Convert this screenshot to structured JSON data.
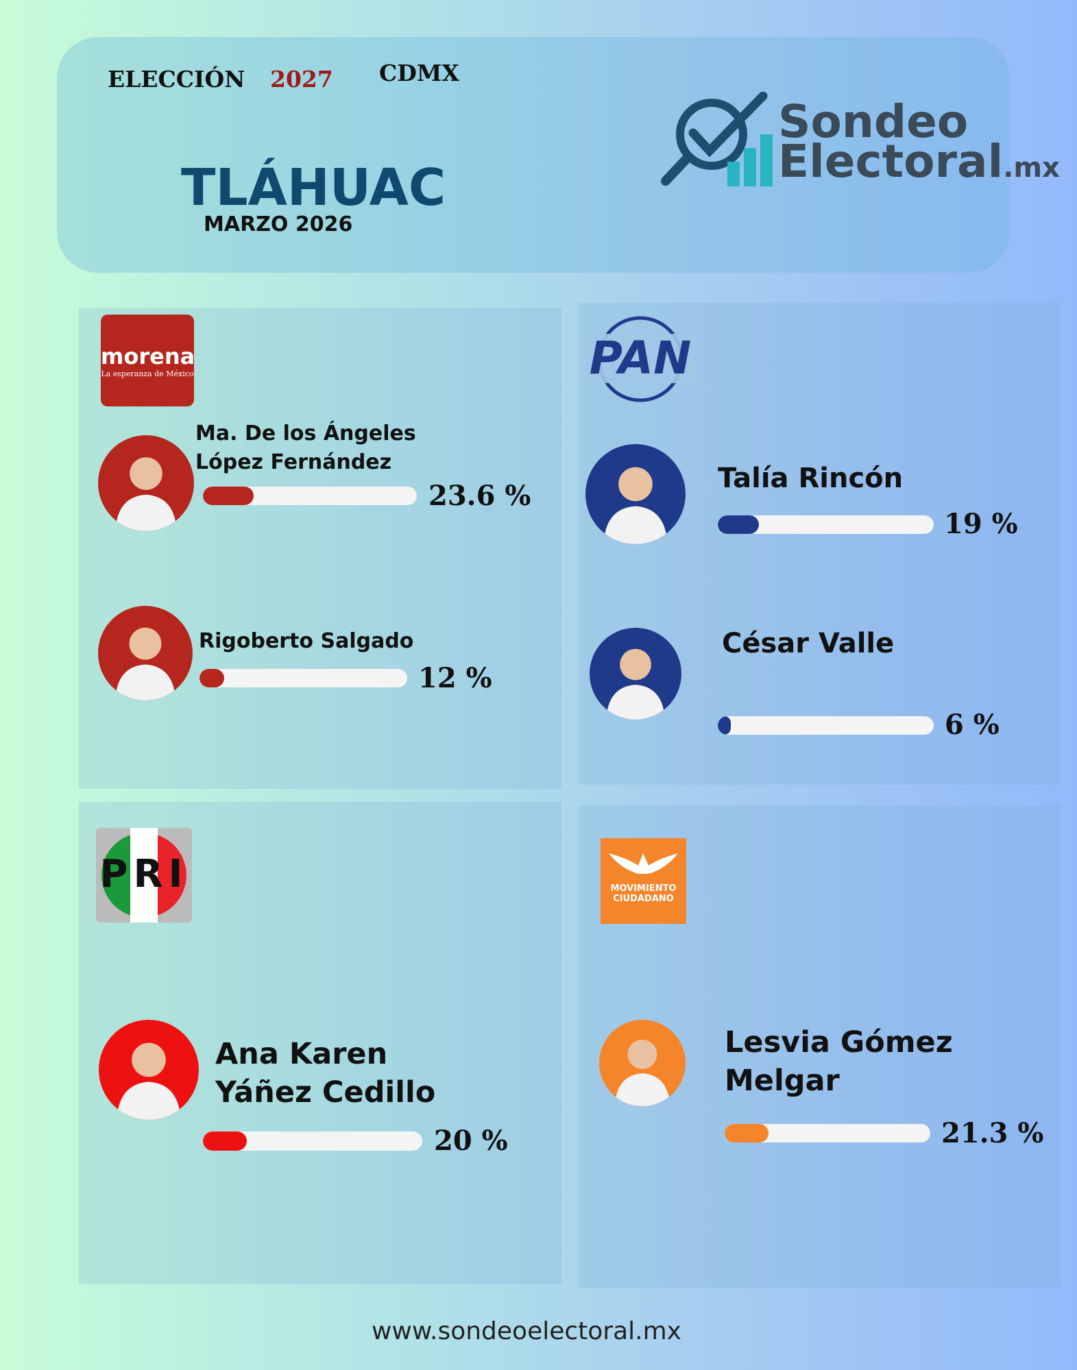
{
  "header": {
    "election": "ELECCIÓN",
    "year": "2027",
    "region": "CDMX",
    "municipality": "TLÁHUAC",
    "date": "MARZO 2026",
    "brand": {
      "name_1": "Sondeo",
      "name_2": "Electoral",
      "suffix": ".mx"
    }
  },
  "parties": [
    {
      "logo_text": "morena",
      "logo_subtext": "La esperanza de México",
      "color": "#b5261e",
      "candidates": [
        {
          "name": "Ma. De los Ángeles López Fernández",
          "value": 23.6,
          "value_label": "23.6 %"
        },
        {
          "name": "Rigoberto Salgado",
          "value": 12,
          "value_label": "12 %"
        }
      ]
    },
    {
      "logo_text": "PAN",
      "color": "#1f3a8a",
      "candidates": [
        {
          "name": "Talía Rincón",
          "value": 19,
          "value_label": "19 %"
        },
        {
          "name": "César Valle",
          "value": 6,
          "value_label": "6 %"
        }
      ]
    },
    {
      "logo_text": "PRI",
      "color": "#ee1111",
      "candidates": [
        {
          "name": "Ana Karen Yáñez Cedillo",
          "value": 20,
          "value_label": "20 %"
        }
      ]
    },
    {
      "logo_text": "MOVIMIENTO CIUDADANO",
      "color": "#f5852a",
      "candidates": [
        {
          "name": "Lesvia Gómez Melgar",
          "value": 21.3,
          "value_label": "21.3 %"
        }
      ]
    }
  ],
  "footer": "www.sondeoelectoral.mx"
}
